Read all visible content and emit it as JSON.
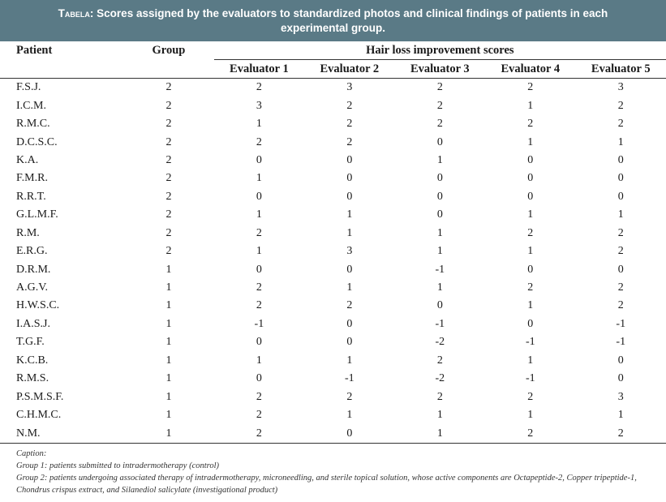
{
  "title": {
    "label": "Tabela",
    "text": ": Scores assigned by the evaluators to standardized photos and clinical findings of patients in each experimental group."
  },
  "headers": {
    "patient": "Patient",
    "group": "Group",
    "scores": "Hair loss improvement scores",
    "evaluators": [
      "Evaluator 1",
      "Evaluator 2",
      "Evaluator 3",
      "Evaluator 4",
      "Evaluator 5"
    ]
  },
  "rows": [
    {
      "patient": "F.S.J.",
      "group": "2",
      "scores": [
        "2",
        "3",
        "2",
        "2",
        "3"
      ]
    },
    {
      "patient": "I.C.M.",
      "group": "2",
      "scores": [
        "3",
        "2",
        "2",
        "1",
        "2"
      ]
    },
    {
      "patient": "R.M.C.",
      "group": "2",
      "scores": [
        "1",
        "2",
        "2",
        "2",
        "2"
      ]
    },
    {
      "patient": "D.C.S.C.",
      "group": "2",
      "scores": [
        "2",
        "2",
        "0",
        "1",
        "1"
      ]
    },
    {
      "patient": "K.A.",
      "group": "2",
      "scores": [
        "0",
        "0",
        "1",
        "0",
        "0"
      ]
    },
    {
      "patient": "F.M.R.",
      "group": "2",
      "scores": [
        "1",
        "0",
        "0",
        "0",
        "0"
      ]
    },
    {
      "patient": "R.R.T.",
      "group": "2",
      "scores": [
        "0",
        "0",
        "0",
        "0",
        "0"
      ]
    },
    {
      "patient": "G.L.M.F.",
      "group": "2",
      "scores": [
        "1",
        "1",
        "0",
        "1",
        "1"
      ]
    },
    {
      "patient": "R.M.",
      "group": "2",
      "scores": [
        "2",
        "1",
        "1",
        "2",
        "2"
      ]
    },
    {
      "patient": "E.R.G.",
      "group": "2",
      "scores": [
        "1",
        "3",
        "1",
        "1",
        "2"
      ]
    },
    {
      "patient": "D.R.M.",
      "group": "1",
      "scores": [
        "0",
        "0",
        "-1",
        "0",
        "0"
      ]
    },
    {
      "patient": "A.G.V.",
      "group": "1",
      "scores": [
        "2",
        "1",
        "1",
        "2",
        "2"
      ]
    },
    {
      "patient": "H.W.S.C.",
      "group": "1",
      "scores": [
        "2",
        "2",
        "0",
        "1",
        "2"
      ]
    },
    {
      "patient": "I.A.S.J.",
      "group": "1",
      "scores": [
        "-1",
        "0",
        "-1",
        "0",
        "-1"
      ]
    },
    {
      "patient": "T.G.F.",
      "group": "1",
      "scores": [
        "0",
        "0",
        "-2",
        "-1",
        "-1"
      ]
    },
    {
      "patient": "K.C.B.",
      "group": "1",
      "scores": [
        "1",
        "1",
        "2",
        "1",
        "0"
      ]
    },
    {
      "patient": "R.M.S.",
      "group": "1",
      "scores": [
        "0",
        "-1",
        "-2",
        "-1",
        "0"
      ]
    },
    {
      "patient": "P.S.M.S.F.",
      "group": "1",
      "scores": [
        "2",
        "2",
        "2",
        "2",
        "3"
      ]
    },
    {
      "patient": "C.H.M.C.",
      "group": "1",
      "scores": [
        "2",
        "1",
        "1",
        "1",
        "1"
      ]
    },
    {
      "patient": "N.M.",
      "group": "1",
      "scores": [
        "2",
        "0",
        "1",
        "2",
        "2"
      ]
    }
  ],
  "caption": {
    "heading": "Caption:",
    "group1": "Group 1: patients submitted to intradermotherapy (control)",
    "group2": "Group 2: patients undergoing associated therapy of intradermotherapy, microneedling, and sterile topical solution, whose active components are Octapeptide-2, Copper tripeptide-1, Chondrus crispus extract, and Silanediol salicylate (investigational product)"
  }
}
